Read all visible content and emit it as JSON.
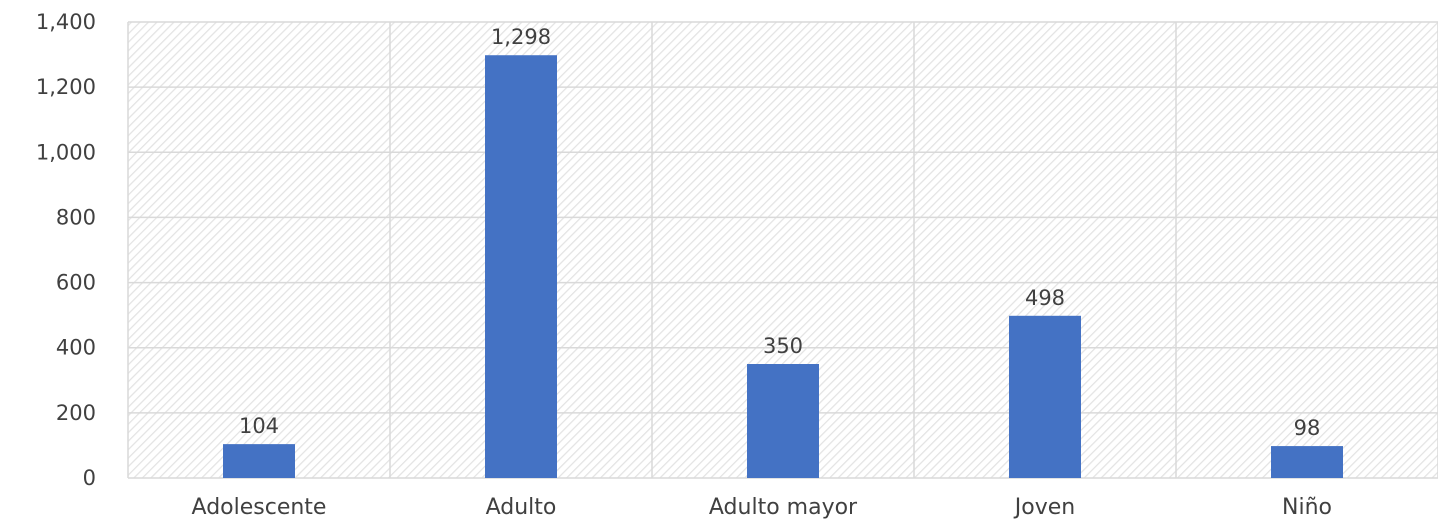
{
  "chart_data": {
    "type": "bar",
    "title": "",
    "xlabel": "",
    "ylabel": "",
    "categories": [
      "Adolescente",
      "Adulto",
      "Adulto mayor",
      "Joven",
      "Niño"
    ],
    "values": [
      104,
      1298,
      350,
      498,
      98
    ],
    "data_labels": [
      "104",
      "1,298",
      "350",
      "498",
      "98"
    ],
    "ylim": [
      0,
      1400
    ],
    "y_ticks": [
      0,
      200,
      400,
      600,
      800,
      1000,
      1200,
      1400
    ],
    "y_tick_labels": [
      "0",
      "200",
      "400",
      "600",
      "800",
      "1,000",
      "1,200",
      "1,400"
    ],
    "grid": true,
    "legend": "none",
    "colors": {
      "bar": "#4472C4",
      "grid": "#d9d9d9",
      "hatch": "#e3e3e3",
      "text": "#404040"
    }
  }
}
